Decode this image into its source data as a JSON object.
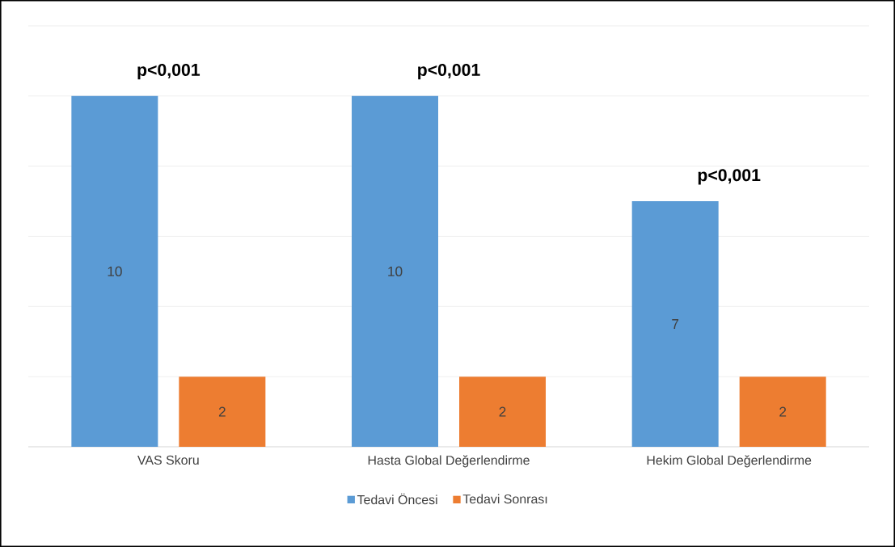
{
  "chart_data": {
    "type": "bar",
    "categories": [
      "VAS Skoru",
      "Hasta Global Değerlendirme",
      "Hekim Global Değerlendirme"
    ],
    "series": [
      {
        "name": "Tedavi Öncesi",
        "color": "#5b9bd5",
        "values": [
          10,
          10,
          7
        ]
      },
      {
        "name": "Tedavi Sonrası",
        "color": "#ed7d31",
        "values": [
          2,
          2,
          2
        ]
      }
    ],
    "ylim": [
      0,
      12
    ],
    "yticks": [
      {
        "value": 0,
        "label": null
      },
      {
        "value": 2,
        "label": null
      },
      {
        "value": 4,
        "label": null
      },
      {
        "value": 6,
        "label": null
      },
      {
        "value": 8,
        "label": null
      },
      {
        "value": 10,
        "label": null
      },
      {
        "value": 12,
        "label": null
      }
    ],
    "tick_labels": "x",
    "grid": "y",
    "legend": "bottom",
    "data_labels": true,
    "annotations": [
      "p<0,001",
      "p<0,001",
      "p<0,001"
    ]
  }
}
